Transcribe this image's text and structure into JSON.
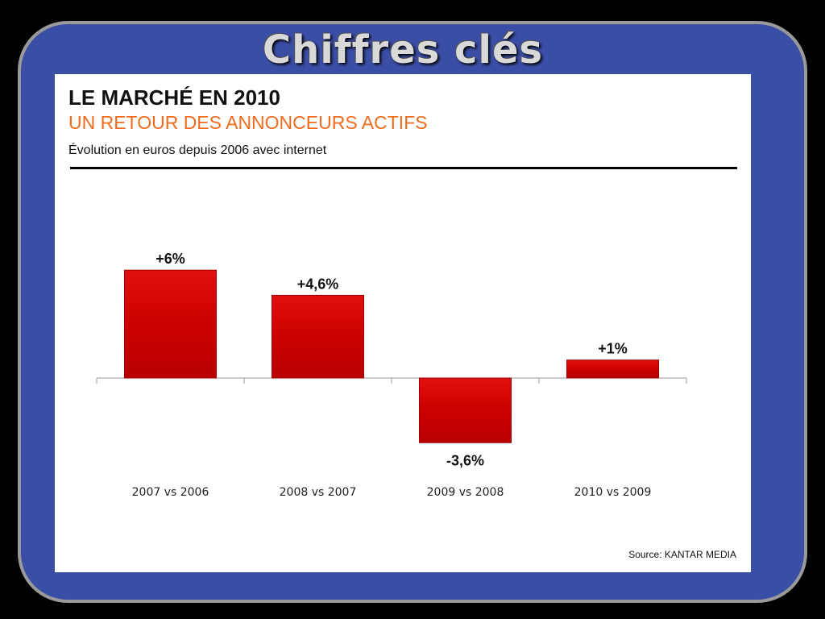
{
  "slide": {
    "title": "Chiffres clés"
  },
  "panel": {
    "heading": "LE MARCHÉ EN 2010",
    "subheading": "UN RETOUR DES ANNONCEURS ACTIFS",
    "caption": "Évolution en euros depuis 2006 avec internet",
    "source": "Source: KANTAR MEDIA"
  },
  "colors": {
    "frame": "#3b4ea6",
    "bar": "#cc0000",
    "subheading": "#f06b1e"
  },
  "chart_data": {
    "type": "bar",
    "categories": [
      "2007 vs 2006",
      "2008 vs 2007",
      "2009 vs 2008",
      "2010 vs 2009"
    ],
    "values": [
      6,
      4.6,
      -3.6,
      1
    ],
    "data_labels": [
      "+6%",
      "+4,6%",
      "-3,6%",
      "+1%"
    ],
    "ylim": [
      -4,
      7
    ],
    "grid": false
  }
}
